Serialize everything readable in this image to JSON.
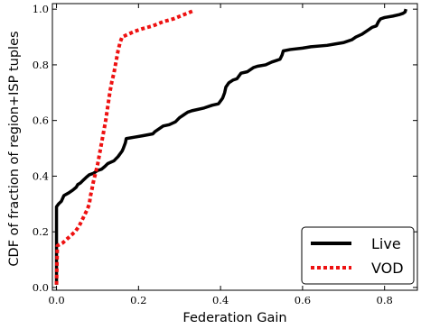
{
  "chart_data": {
    "type": "line",
    "xlabel": "Federation Gain",
    "ylabel": "CDF of fraction of region+ISP tuples",
    "xlim": [
      -0.01,
      0.88
    ],
    "ylim": [
      -0.01,
      1.02
    ],
    "xticks": [
      {
        "value": 0.0,
        "label": "0.0"
      },
      {
        "value": 0.2,
        "label": "0.2"
      },
      {
        "value": 0.4,
        "label": "0.4"
      },
      {
        "value": 0.6,
        "label": "0.6"
      },
      {
        "value": 0.8,
        "label": "0.8"
      }
    ],
    "yticks": [
      {
        "value": 0.0,
        "label": "0.0"
      },
      {
        "value": 0.2,
        "label": "0.2"
      },
      {
        "value": 0.4,
        "label": "0.4"
      },
      {
        "value": 0.6,
        "label": "0.6"
      },
      {
        "value": 0.8,
        "label": "0.8"
      },
      {
        "value": 1.0,
        "label": "1.0"
      }
    ],
    "grid": false,
    "legend_position": "bottom-right",
    "series": [
      {
        "name": "Live",
        "color": "#000000",
        "dash": "solid",
        "points": [
          [
            0.0,
            0.01
          ],
          [
            0.0,
            0.29
          ],
          [
            0.005,
            0.3
          ],
          [
            0.012,
            0.31
          ],
          [
            0.015,
            0.32
          ],
          [
            0.018,
            0.33
          ],
          [
            0.03,
            0.34
          ],
          [
            0.04,
            0.35
          ],
          [
            0.048,
            0.36
          ],
          [
            0.052,
            0.37
          ],
          [
            0.058,
            0.375
          ],
          [
            0.065,
            0.385
          ],
          [
            0.072,
            0.395
          ],
          [
            0.08,
            0.405
          ],
          [
            0.09,
            0.41
          ],
          [
            0.1,
            0.42
          ],
          [
            0.11,
            0.425
          ],
          [
            0.118,
            0.435
          ],
          [
            0.125,
            0.445
          ],
          [
            0.14,
            0.455
          ],
          [
            0.15,
            0.47
          ],
          [
            0.155,
            0.48
          ],
          [
            0.16,
            0.49
          ],
          [
            0.163,
            0.5
          ],
          [
            0.168,
            0.52
          ],
          [
            0.17,
            0.535
          ],
          [
            0.19,
            0.54
          ],
          [
            0.21,
            0.545
          ],
          [
            0.235,
            0.552
          ],
          [
            0.24,
            0.56
          ],
          [
            0.25,
            0.57
          ],
          [
            0.26,
            0.58
          ],
          [
            0.275,
            0.585
          ],
          [
            0.29,
            0.595
          ],
          [
            0.3,
            0.61
          ],
          [
            0.31,
            0.62
          ],
          [
            0.32,
            0.63
          ],
          [
            0.33,
            0.635
          ],
          [
            0.36,
            0.645
          ],
          [
            0.38,
            0.655
          ],
          [
            0.395,
            0.66
          ],
          [
            0.4,
            0.67
          ],
          [
            0.405,
            0.68
          ],
          [
            0.41,
            0.7
          ],
          [
            0.413,
            0.72
          ],
          [
            0.42,
            0.735
          ],
          [
            0.43,
            0.745
          ],
          [
            0.44,
            0.75
          ],
          [
            0.45,
            0.77
          ],
          [
            0.465,
            0.775
          ],
          [
            0.48,
            0.79
          ],
          [
            0.49,
            0.795
          ],
          [
            0.51,
            0.8
          ],
          [
            0.525,
            0.81
          ],
          [
            0.535,
            0.815
          ],
          [
            0.545,
            0.82
          ],
          [
            0.55,
            0.835
          ],
          [
            0.553,
            0.85
          ],
          [
            0.57,
            0.855
          ],
          [
            0.6,
            0.86
          ],
          [
            0.62,
            0.865
          ],
          [
            0.66,
            0.87
          ],
          [
            0.68,
            0.875
          ],
          [
            0.7,
            0.88
          ],
          [
            0.72,
            0.89
          ],
          [
            0.73,
            0.9
          ],
          [
            0.745,
            0.91
          ],
          [
            0.76,
            0.925
          ],
          [
            0.77,
            0.935
          ],
          [
            0.78,
            0.94
          ],
          [
            0.785,
            0.955
          ],
          [
            0.79,
            0.965
          ],
          [
            0.8,
            0.97
          ],
          [
            0.82,
            0.975
          ],
          [
            0.835,
            0.98
          ],
          [
            0.845,
            0.985
          ],
          [
            0.85,
            0.99
          ],
          [
            0.852,
            1.0
          ]
        ]
      },
      {
        "name": "VOD",
        "color": "#ee1111",
        "dash": "dotted",
        "points": [
          [
            0.0,
            0.01
          ],
          [
            0.002,
            0.15
          ],
          [
            0.015,
            0.16
          ],
          [
            0.03,
            0.18
          ],
          [
            0.045,
            0.2
          ],
          [
            0.055,
            0.22
          ],
          [
            0.065,
            0.25
          ],
          [
            0.075,
            0.28
          ],
          [
            0.08,
            0.3
          ],
          [
            0.083,
            0.33
          ],
          [
            0.086,
            0.35
          ],
          [
            0.09,
            0.38
          ],
          [
            0.095,
            0.41
          ],
          [
            0.1,
            0.44
          ],
          [
            0.105,
            0.48
          ],
          [
            0.11,
            0.52
          ],
          [
            0.115,
            0.56
          ],
          [
            0.12,
            0.6
          ],
          [
            0.125,
            0.65
          ],
          [
            0.13,
            0.7
          ],
          [
            0.135,
            0.74
          ],
          [
            0.14,
            0.77
          ],
          [
            0.145,
            0.81
          ],
          [
            0.15,
            0.85
          ],
          [
            0.155,
            0.88
          ],
          [
            0.16,
            0.9
          ],
          [
            0.175,
            0.91
          ],
          [
            0.19,
            0.92
          ],
          [
            0.21,
            0.93
          ],
          [
            0.235,
            0.94
          ],
          [
            0.26,
            0.955
          ],
          [
            0.285,
            0.965
          ],
          [
            0.31,
            0.98
          ],
          [
            0.335,
            0.995
          ]
        ]
      }
    ]
  }
}
